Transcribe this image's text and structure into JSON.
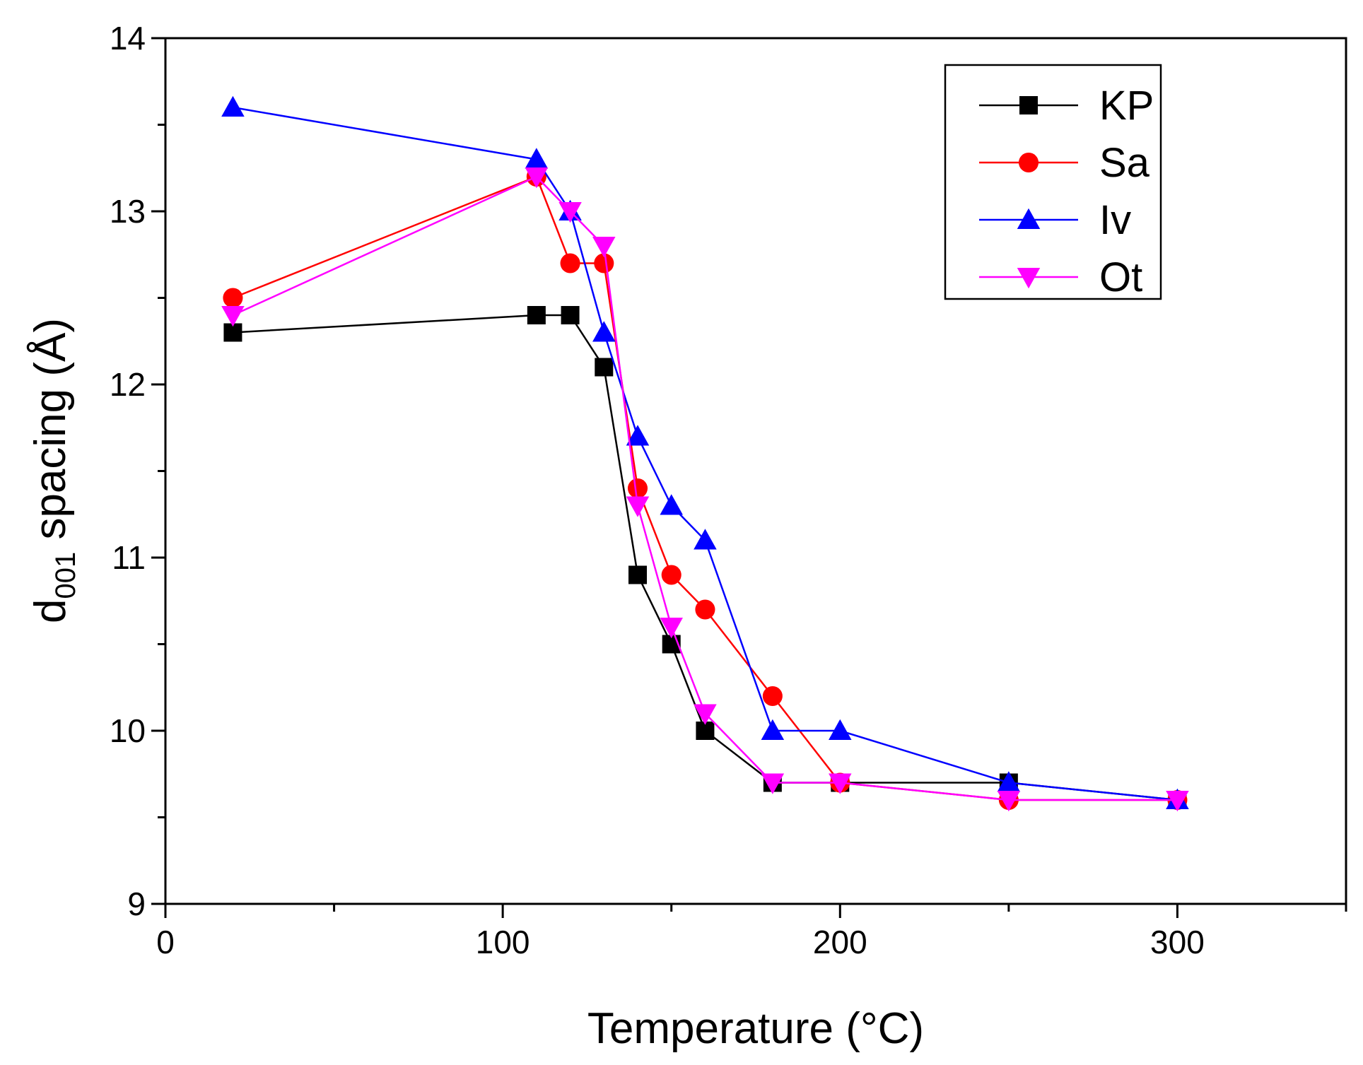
{
  "chart_data": {
    "type": "line",
    "xlabel": "Temperature (°C)",
    "ylabel": {
      "main": "d",
      "sub": "001",
      "rest": " spacing (Å)"
    },
    "xlim": [
      0,
      350
    ],
    "ylim": [
      9,
      14
    ],
    "x_ticks": [
      0,
      100,
      200,
      300
    ],
    "x_minor_ticks": [
      50,
      150,
      250,
      350
    ],
    "y_ticks": [
      9,
      10,
      11,
      12,
      13,
      14
    ],
    "y_minor_ticks": [
      9.5,
      10.5,
      11.5,
      12.5,
      13.5
    ],
    "grid": false,
    "legend_position": "top-right",
    "series": [
      {
        "name": "KP",
        "color": "#000000",
        "marker": "square",
        "x": [
          20,
          110,
          120,
          130,
          140,
          150,
          160,
          180,
          200,
          250,
          300
        ],
        "y": [
          12.3,
          12.4,
          12.4,
          12.1,
          10.9,
          10.5,
          10.0,
          9.7,
          9.7,
          9.7,
          9.6
        ]
      },
      {
        "name": "Sa",
        "color": "#ff0000",
        "marker": "circle",
        "x": [
          20,
          110,
          120,
          130,
          140,
          150,
          160,
          180,
          200,
          250,
          300
        ],
        "y": [
          12.5,
          13.2,
          12.7,
          12.7,
          11.4,
          10.9,
          10.7,
          10.2,
          9.7,
          9.6,
          9.6
        ]
      },
      {
        "name": "Iv",
        "color": "#0000ff",
        "marker": "triangle-up",
        "x": [
          20,
          110,
          120,
          130,
          140,
          150,
          160,
          180,
          200,
          250,
          300
        ],
        "y": [
          13.6,
          13.3,
          13.0,
          12.3,
          11.7,
          11.3,
          11.1,
          10.0,
          10.0,
          9.7,
          9.6
        ]
      },
      {
        "name": "Ot",
        "color": "#ff00ff",
        "marker": "triangle-down",
        "x": [
          20,
          110,
          120,
          130,
          140,
          150,
          160,
          180,
          200,
          250,
          300
        ],
        "y": [
          12.4,
          13.2,
          13.0,
          12.8,
          11.3,
          10.6,
          10.1,
          9.7,
          9.7,
          9.6,
          9.6
        ]
      }
    ]
  }
}
